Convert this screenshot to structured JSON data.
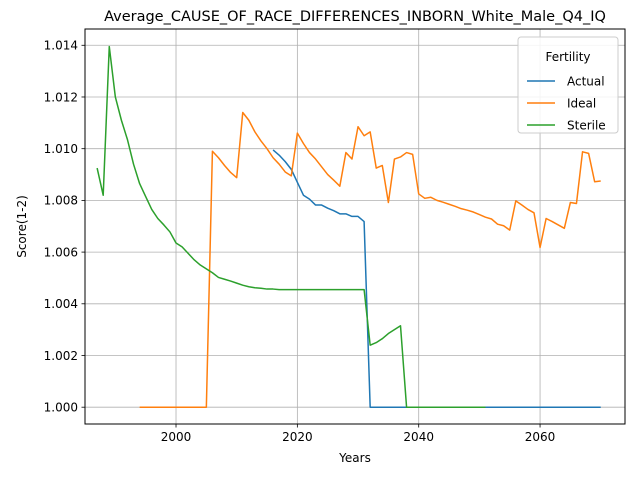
{
  "chart_data": {
    "type": "line",
    "title": "Average_CAUSE_OF_RACE_DIFFERENCES_INBORN_White_Male_Q4_IQ",
    "xlabel": "Years",
    "ylabel": "Score(1-2)",
    "xlim": [
      1985,
      2074
    ],
    "ylim": [
      0.99935,
      1.01463
    ],
    "xticks": [
      2000,
      2020,
      2040,
      2060
    ],
    "yticks": [
      1.0,
      1.002,
      1.004,
      1.006,
      1.008,
      1.01,
      1.012,
      1.014
    ],
    "ytick_labels": [
      "1.000",
      "1.002",
      "1.004",
      "1.006",
      "1.008",
      "1.010",
      "1.012",
      "1.014"
    ],
    "grid": true,
    "legend": {
      "title": "Fertility",
      "placement": "top-right"
    },
    "series": [
      {
        "name": "Actual",
        "color": "#1f77b4",
        "points": [
          [
            2016,
            1.00995
          ],
          [
            2017,
            1.00975
          ],
          [
            2018,
            1.0095
          ],
          [
            2019,
            1.0092
          ],
          [
            2020,
            1.0087
          ],
          [
            2021,
            1.0082
          ],
          [
            2022,
            1.00805
          ],
          [
            2023,
            1.00782
          ],
          [
            2024,
            1.00782
          ],
          [
            2025,
            1.0077
          ],
          [
            2026,
            1.0076
          ],
          [
            2027,
            1.00748
          ],
          [
            2028,
            1.00748
          ],
          [
            2029,
            1.00738
          ],
          [
            2030,
            1.00738
          ],
          [
            2031,
            1.00718
          ],
          [
            2032,
            1.0
          ],
          [
            2040,
            1.0
          ],
          [
            2050,
            1.0
          ],
          [
            2060,
            1.0
          ],
          [
            2070,
            1.0
          ]
        ]
      },
      {
        "name": "Ideal",
        "color": "#ff7f0e",
        "points": [
          [
            1994,
            1.0
          ],
          [
            2000,
            1.0
          ],
          [
            2005,
            1.0
          ],
          [
            2006,
            1.0099
          ],
          [
            2007,
            1.00965
          ],
          [
            2008,
            1.00935
          ],
          [
            2009,
            1.00908
          ],
          [
            2010,
            1.00888
          ],
          [
            2011,
            1.0114
          ],
          [
            2012,
            1.0111
          ],
          [
            2013,
            1.01065
          ],
          [
            2014,
            1.0103
          ],
          [
            2015,
            1.01
          ],
          [
            2016,
            1.00965
          ],
          [
            2017,
            1.0094
          ],
          [
            2018,
            1.0091
          ],
          [
            2019,
            1.00895
          ],
          [
            2020,
            1.0106
          ],
          [
            2021,
            1.0102
          ],
          [
            2022,
            1.00985
          ],
          [
            2023,
            1.0096
          ],
          [
            2024,
            1.0093
          ],
          [
            2025,
            1.009
          ],
          [
            2026,
            1.00878
          ],
          [
            2027,
            1.00855
          ],
          [
            2028,
            1.00985
          ],
          [
            2029,
            1.0096
          ],
          [
            2030,
            1.01085
          ],
          [
            2031,
            1.0105
          ],
          [
            2032,
            1.01065
          ],
          [
            2033,
            1.00925
          ],
          [
            2034,
            1.00935
          ],
          [
            2035,
            1.00792
          ],
          [
            2036,
            1.0096
          ],
          [
            2037,
            1.00968
          ],
          [
            2038,
            1.00985
          ],
          [
            2039,
            1.00978
          ],
          [
            2040,
            1.00825
          ],
          [
            2041,
            1.00808
          ],
          [
            2042,
            1.00812
          ],
          [
            2043,
            1.008
          ],
          [
            2044,
            1.00793
          ],
          [
            2045,
            1.00785
          ],
          [
            2046,
            1.00777
          ],
          [
            2047,
            1.00768
          ],
          [
            2048,
            1.00762
          ],
          [
            2049,
            1.00755
          ],
          [
            2050,
            1.00745
          ],
          [
            2051,
            1.00735
          ],
          [
            2052,
            1.00728
          ],
          [
            2053,
            1.00708
          ],
          [
            2054,
            1.00702
          ],
          [
            2055,
            1.00685
          ],
          [
            2056,
            1.00798
          ],
          [
            2057,
            1.00782
          ],
          [
            2058,
            1.00765
          ],
          [
            2059,
            1.00752
          ],
          [
            2060,
            1.00618
          ],
          [
            2061,
            1.0073
          ],
          [
            2062,
            1.00718
          ],
          [
            2063,
            1.00705
          ],
          [
            2064,
            1.00692
          ],
          [
            2065,
            1.00792
          ],
          [
            2066,
            1.00788
          ],
          [
            2067,
            1.00988
          ],
          [
            2068,
            1.00982
          ],
          [
            2069,
            1.00872
          ],
          [
            2070,
            1.00875
          ]
        ]
      },
      {
        "name": "Sterile",
        "color": "#2ca02c",
        "points": [
          [
            1987,
            1.00925
          ],
          [
            1988,
            1.0082
          ],
          [
            1989,
            1.01395
          ],
          [
            1990,
            1.012
          ],
          [
            1991,
            1.0111
          ],
          [
            1992,
            1.01035
          ],
          [
            1993,
            1.0094
          ],
          [
            1994,
            1.00865
          ],
          [
            1995,
            1.00815
          ],
          [
            1996,
            1.00765
          ],
          [
            1997,
            1.0073
          ],
          [
            1998,
            1.00705
          ],
          [
            1999,
            1.00678
          ],
          [
            2000,
            1.00635
          ],
          [
            2001,
            1.0062
          ],
          [
            2002,
            1.00595
          ],
          [
            2003,
            1.0057
          ],
          [
            2004,
            1.0055
          ],
          [
            2005,
            1.00535
          ],
          [
            2006,
            1.0052
          ],
          [
            2007,
            1.00502
          ],
          [
            2008,
            1.00495
          ],
          [
            2009,
            1.00488
          ],
          [
            2010,
            1.0048
          ],
          [
            2011,
            1.00472
          ],
          [
            2012,
            1.00466
          ],
          [
            2013,
            1.00462
          ],
          [
            2014,
            1.0046
          ],
          [
            2015,
            1.00457
          ],
          [
            2016,
            1.00457
          ],
          [
            2017,
            1.00455
          ],
          [
            2018,
            1.00455
          ],
          [
            2020,
            1.00455
          ],
          [
            2025,
            1.00455
          ],
          [
            2030,
            1.00455
          ],
          [
            2031,
            1.00455
          ],
          [
            2032,
            1.0024
          ],
          [
            2033,
            1.0025
          ],
          [
            2034,
            1.00265
          ],
          [
            2035,
            1.00285
          ],
          [
            2036,
            1.003
          ],
          [
            2037,
            1.00315
          ],
          [
            2038,
            1.0
          ],
          [
            2040,
            1.0
          ],
          [
            2045,
            1.0
          ],
          [
            2051,
            1.0
          ]
        ]
      }
    ]
  }
}
